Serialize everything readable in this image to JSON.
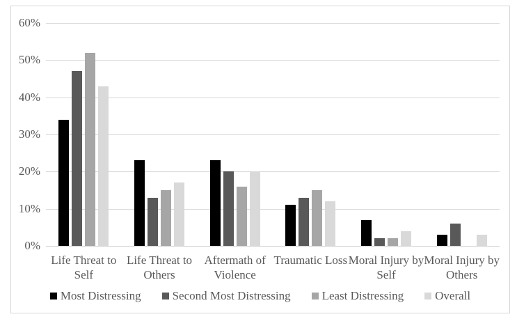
{
  "chart_data": {
    "type": "bar",
    "title": "",
    "xlabel": "",
    "ylabel": "",
    "categories": [
      "Life Threat to Self",
      "Life Threat to Others",
      "Aftermath of Violence",
      "Traumatic Loss",
      "Moral Injury by Self",
      "Moral Injury by Others"
    ],
    "tick_label_lines": [
      [
        "Life Threat to",
        "Self"
      ],
      [
        "Life Threat to",
        "Others"
      ],
      [
        "Aftermath of",
        "Violence"
      ],
      [
        "Traumatic Loss"
      ],
      [
        "Moral Injury by",
        "Self"
      ],
      [
        "Moral Injury by",
        "Others"
      ]
    ],
    "series": [
      {
        "name": "Most Distressing",
        "color": "#000000",
        "values": [
          34,
          23,
          23,
          11,
          7,
          3
        ]
      },
      {
        "name": "Second Most Distressing",
        "color": "#595959",
        "values": [
          47,
          13,
          20,
          13,
          2,
          6
        ]
      },
      {
        "name": "Least Distressing",
        "color": "#a6a6a6",
        "values": [
          52,
          15,
          16,
          15,
          2,
          0
        ]
      },
      {
        "name": "Overall",
        "color": "#d9d9d9",
        "values": [
          43,
          17,
          20,
          12,
          4,
          3
        ]
      }
    ],
    "ylim": [
      0,
      60
    ],
    "ytick_step": 10,
    "ytick_labels": [
      "0%",
      "10%",
      "20%",
      "30%",
      "40%",
      "50%",
      "60%"
    ],
    "grid": true,
    "legend_position": "bottom"
  },
  "colors": {
    "background": "#ffffff",
    "border": "#d6d6d6",
    "gridline": "#d9d9d9",
    "text": "#595959"
  }
}
